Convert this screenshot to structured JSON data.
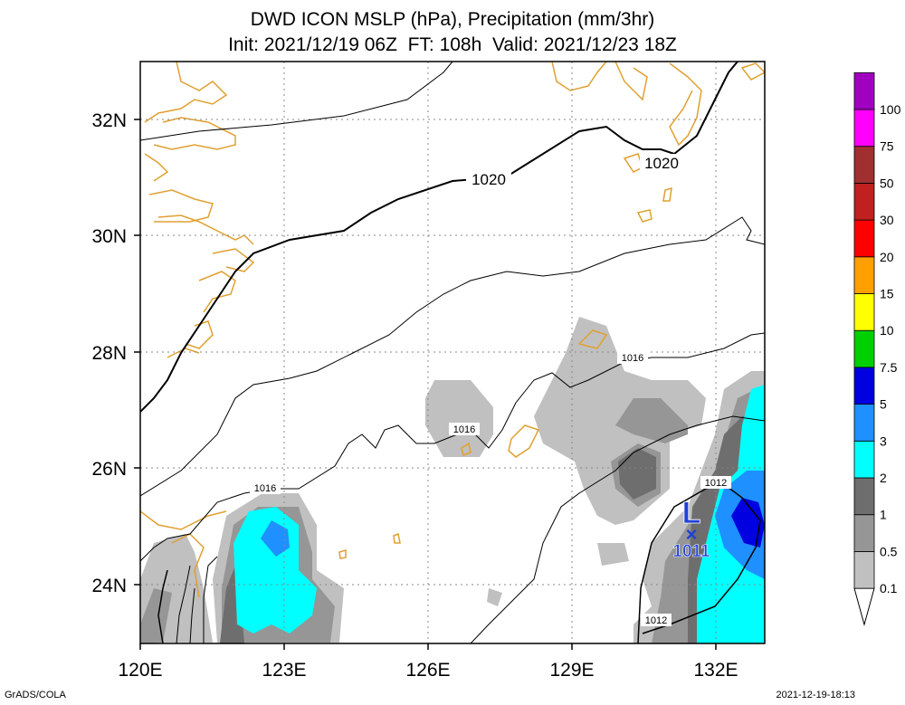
{
  "header": {
    "title_line1": "DWD ICON MSLP (hPa), Precipitation (mm/3hr)",
    "title_line2": "Init: 2021/12/19 06Z  FT: 108h  Valid: 2021/12/23 18Z"
  },
  "map": {
    "lon_labels": [
      "120E",
      "123E",
      "126E",
      "129E",
      "132E"
    ],
    "lat_labels": [
      "32N",
      "30N",
      "28N",
      "26N",
      "24N"
    ],
    "lon_range": [
      120,
      133
    ],
    "lat_range": [
      23,
      33
    ],
    "grid": true,
    "coastline_color": "#e0a030",
    "contour_labels": [
      "1020",
      "1020",
      "1016",
      "1016",
      "1016",
      "1012",
      "1012"
    ],
    "low_center": {
      "marker": "L",
      "symbol": "×",
      "value": "1011",
      "color": "#2040d8"
    }
  },
  "colorbar": {
    "levels": [
      "0.1",
      "0.5",
      "1",
      "2",
      "3",
      "5",
      "7.5",
      "10",
      "15",
      "20",
      "30",
      "50",
      "75",
      "100"
    ],
    "colors": [
      "#c0c0c0",
      "#969696",
      "#6e6e6e",
      "#00ffff",
      "#1e90ff",
      "#0000e0",
      "#00d000",
      "#ffff00",
      "#ffa000",
      "#ff0000",
      "#c02020",
      "#a03030",
      "#ff00ff",
      "#a000c0",
      "#600090"
    ]
  },
  "footer": {
    "left": "GrADS/COLA",
    "right": "2021-12-19-18:13"
  }
}
